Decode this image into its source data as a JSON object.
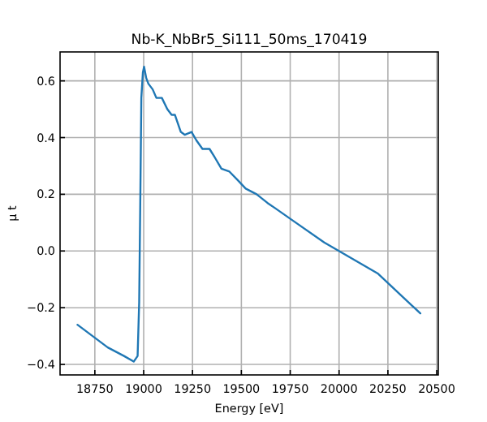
{
  "chart_data": {
    "type": "line",
    "title": "Nb-K_NbBr5_Si111_50ms_170419",
    "xlabel": "Energy [eV]",
    "ylabel": "μ t",
    "x": [
      18661,
      18816,
      18899,
      18949,
      18969,
      18977,
      18983,
      18988,
      18996,
      19002,
      19013,
      19024,
      19046,
      19065,
      19093,
      19121,
      19143,
      19160,
      19190,
      19210,
      19245,
      19270,
      19301,
      19337,
      19364,
      19398,
      19439,
      19481,
      19522,
      19578,
      19633,
      19675,
      19758,
      19924,
      20200,
      20416
    ],
    "series": [
      {
        "color": "#1f77b4",
        "values": [
          -0.26,
          -0.34,
          -0.37,
          -0.39,
          -0.37,
          -0.18,
          0.2,
          0.54,
          0.63,
          0.65,
          0.61,
          0.59,
          0.57,
          0.54,
          0.54,
          0.5,
          0.48,
          0.48,
          0.42,
          0.41,
          0.42,
          0.39,
          0.36,
          0.36,
          0.33,
          0.29,
          0.28,
          0.25,
          0.22,
          0.2,
          0.17,
          0.15,
          0.11,
          0.03,
          -0.08,
          -0.22
        ]
      }
    ],
    "xlim": [
      18572,
      20508
    ],
    "ylim": [
      -0.437,
      0.702
    ],
    "xticks": [
      18750,
      19000,
      19250,
      19500,
      19750,
      20000,
      20250,
      20500
    ],
    "yticks": [
      {
        "value": -0.4,
        "label": "−0.4"
      },
      {
        "value": -0.2,
        "label": "−0.2"
      },
      {
        "value": 0,
        "label": "0.0"
      },
      {
        "value": 0.2,
        "label": "0.2"
      },
      {
        "value": 0.4,
        "label": "0.4"
      },
      {
        "value": 0.6,
        "label": "0.6"
      }
    ],
    "grid": true,
    "line_style": "solid",
    "marker": "none"
  }
}
